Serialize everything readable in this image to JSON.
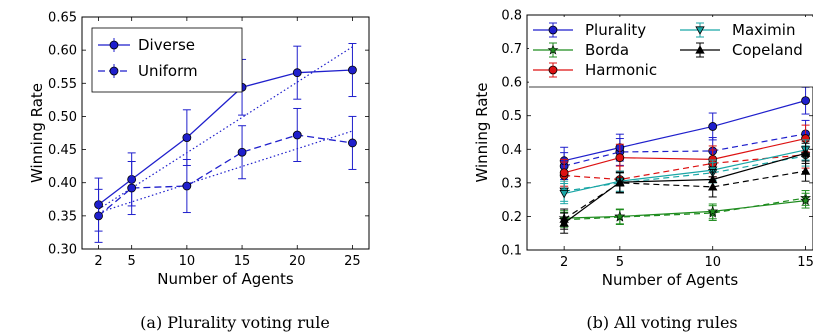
{
  "chart_data": [
    {
      "type": "line",
      "caption": "(a) Plurality voting rule",
      "xlabel": "Number of Agents",
      "ylabel": "Winning Rate",
      "x": [
        2,
        5,
        10,
        15,
        20,
        25
      ],
      "xticks": [
        2,
        5,
        10,
        15,
        20,
        25
      ],
      "xlim": [
        0.5,
        26.5
      ],
      "ylim": [
        0.3,
        0.65
      ],
      "yticks": [
        0.3,
        0.35,
        0.4,
        0.45,
        0.5,
        0.55,
        0.6,
        0.65
      ],
      "ytick_labels": [
        "0.30",
        "0.35",
        "0.40",
        "0.45",
        "0.50",
        "0.55",
        "0.60",
        "0.65"
      ],
      "legend_position": "top-left",
      "series": [
        {
          "name": "Diverse",
          "color": "#1f1fcc",
          "dash": "solid",
          "marker": "circle",
          "values": [
            0.367,
            0.405,
            0.468,
            0.544,
            0.566,
            0.57
          ],
          "err": [
            0.04,
            0.04,
            0.042,
            0.042,
            0.04,
            0.04
          ]
        },
        {
          "name": "Uniform",
          "color": "#1f1fcc",
          "dash": "dashed",
          "marker": "circle",
          "values": [
            0.35,
            0.392,
            0.395,
            0.446,
            0.472,
            0.46
          ],
          "err": [
            0.04,
            0.04,
            0.04,
            0.04,
            0.04,
            0.04
          ]
        }
      ],
      "trendlines": [
        {
          "color": "#1f1fcc",
          "points": [
            [
              2,
              0.36
            ],
            [
              25,
              0.605
            ]
          ]
        },
        {
          "color": "#1f1fcc",
          "points": [
            [
              2,
              0.355
            ],
            [
              25,
              0.478
            ]
          ]
        }
      ]
    },
    {
      "type": "line",
      "caption": "(b) All voting rules",
      "xlabel": "Number of Agents",
      "ylabel": "Winning Rate",
      "x": [
        2,
        5,
        10,
        15
      ],
      "xticks": [
        2,
        5,
        10,
        15
      ],
      "xlim": [
        0,
        15.4
      ],
      "ylim": [
        0.1,
        0.8
      ],
      "yticks": [
        0.1,
        0.2,
        0.3,
        0.4,
        0.5,
        0.6,
        0.7,
        0.8
      ],
      "ytick_labels": [
        "0.1",
        "0.2",
        "0.3",
        "0.4",
        "0.5",
        "0.6",
        "0.7",
        "0.8"
      ],
      "legend_position": "top",
      "series": [
        {
          "name": "Plurality",
          "color": "#1f1fcc",
          "marker": "circle",
          "diverse": [
            0.366,
            0.405,
            0.468,
            0.545
          ],
          "uniform": [
            0.35,
            0.392,
            0.395,
            0.446
          ],
          "err": 0.04
        },
        {
          "name": "Borda",
          "color": "#1e8c1e",
          "marker": "star",
          "diverse": [
            0.195,
            0.2,
            0.215,
            0.247
          ],
          "uniform": [
            0.19,
            0.198,
            0.21,
            0.255
          ],
          "err": 0.022
        },
        {
          "name": "Harmonic",
          "color": "#dd1111",
          "marker": "circle",
          "diverse": [
            0.33,
            0.375,
            0.37,
            0.432
          ],
          "uniform": [
            0.322,
            0.31,
            0.358,
            0.384
          ],
          "err": 0.04
        },
        {
          "name": "Maximin",
          "color": "#1aa6a6",
          "marker": "triangle-down",
          "diverse": [
            0.268,
            0.305,
            0.338,
            0.398
          ],
          "uniform": [
            0.275,
            0.3,
            0.33,
            0.38
          ],
          "err": 0.03
        },
        {
          "name": "Copeland",
          "color": "#000000",
          "marker": "triangle-up",
          "diverse": [
            0.18,
            0.302,
            0.31,
            0.388
          ],
          "uniform": [
            0.192,
            0.3,
            0.288,
            0.335
          ],
          "err": 0.03
        }
      ]
    }
  ]
}
